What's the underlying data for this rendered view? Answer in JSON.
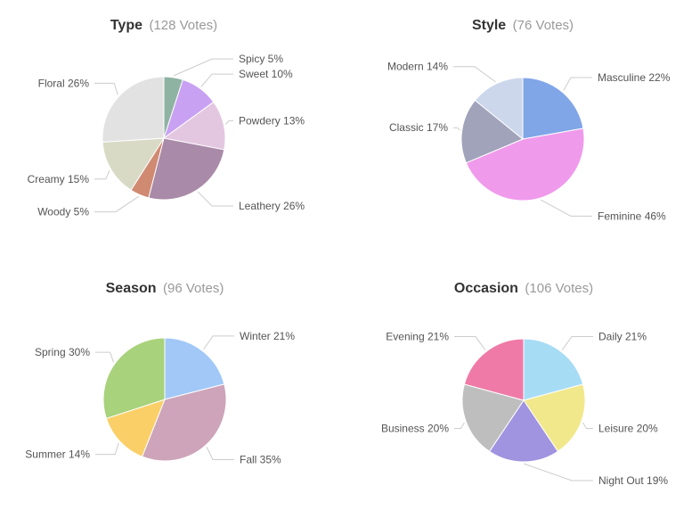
{
  "page": {
    "background": "#ffffff",
    "connector_color": "#cccccc"
  },
  "chart_data": [
    {
      "type": "pie",
      "title": "Type",
      "subtitle": "(128 Votes)",
      "total_votes": 128,
      "legend_position": "none",
      "labels": "outside-with-connector-lines",
      "start_angle_deg": 0,
      "direction": "clockwise",
      "slices": [
        {
          "name": "Spicy",
          "percent": 5,
          "label": "Spicy 5%",
          "color": "#8fb3a3"
        },
        {
          "name": "Sweet",
          "percent": 10,
          "label": "Sweet 10%",
          "color": "#c9a1f2"
        },
        {
          "name": "Powdery",
          "percent": 13,
          "label": "Powdery 13%",
          "color": "#e3c7e0"
        },
        {
          "name": "Leathery",
          "percent": 26,
          "label": "Leathery 26%",
          "color": "#a98aa8"
        },
        {
          "name": "Woody",
          "percent": 5,
          "label": "Woody 5%",
          "color": "#d08a72"
        },
        {
          "name": "Creamy",
          "percent": 15,
          "label": "Creamy 15%",
          "color": "#d8dac6"
        },
        {
          "name": "Floral",
          "percent": 26,
          "label": "Floral 26%",
          "color": "#e2e2e2"
        }
      ]
    },
    {
      "type": "pie",
      "title": "Style",
      "subtitle": "(76 Votes)",
      "total_votes": 76,
      "legend_position": "none",
      "labels": "outside-with-connector-lines",
      "start_angle_deg": 0,
      "direction": "clockwise",
      "slices": [
        {
          "name": "Masculine",
          "percent": 22,
          "label": "Masculine 22%",
          "color": "#81a6e8"
        },
        {
          "name": "Feminine",
          "percent": 46,
          "label": "Feminine 46%",
          "color": "#f09aec"
        },
        {
          "name": "Classic",
          "percent": 17,
          "label": "Classic 17%",
          "color": "#a0a3ba"
        },
        {
          "name": "Modern",
          "percent": 14,
          "label": "Modern 14%",
          "color": "#ccd7ec"
        }
      ]
    },
    {
      "type": "pie",
      "title": "Season",
      "subtitle": "(96 Votes)",
      "total_votes": 96,
      "legend_position": "none",
      "labels": "outside-with-connector-lines",
      "start_angle_deg": 0,
      "direction": "clockwise",
      "slices": [
        {
          "name": "Winter",
          "percent": 21,
          "label": "Winter 21%",
          "color": "#a1c8f7"
        },
        {
          "name": "Fall",
          "percent": 35,
          "label": "Fall 35%",
          "color": "#cda4b9"
        },
        {
          "name": "Summer",
          "percent": 14,
          "label": "Summer 14%",
          "color": "#fbcf68"
        },
        {
          "name": "Spring",
          "percent": 30,
          "label": "Spring 30%",
          "color": "#a8d27b"
        }
      ]
    },
    {
      "type": "pie",
      "title": "Occasion",
      "subtitle": "(106 Votes)",
      "total_votes": 106,
      "legend_position": "none",
      "labels": "outside-with-connector-lines",
      "start_angle_deg": 0,
      "direction": "clockwise",
      "slices": [
        {
          "name": "Daily",
          "percent": 21,
          "label": "Daily 21%",
          "color": "#a7dcf5"
        },
        {
          "name": "Leisure",
          "percent": 20,
          "label": "Leisure 20%",
          "color": "#f1e88c"
        },
        {
          "name": "Night Out",
          "percent": 19,
          "label": "Night Out 19%",
          "color": "#a093e0"
        },
        {
          "name": "Business",
          "percent": 20,
          "label": "Business 20%",
          "color": "#bebebe"
        },
        {
          "name": "Evening",
          "percent": 21,
          "label": "Evening 21%",
          "color": "#ef7aa7"
        }
      ]
    }
  ]
}
